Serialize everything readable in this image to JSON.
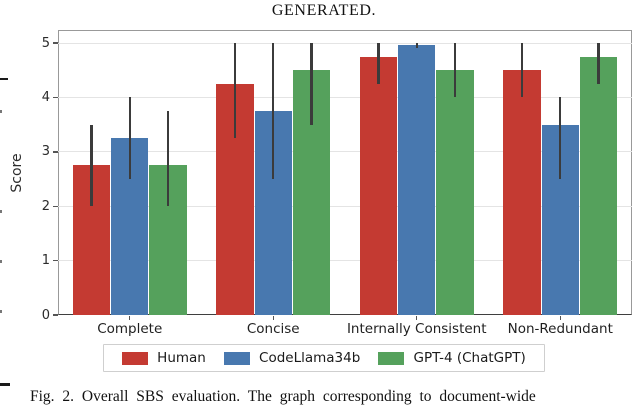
{
  "page": {
    "top_caption": "GENERATED.",
    "figure_caption": "Fig. 2.   Overall SBS evaluation. The graph corresponding to document-wide"
  },
  "chart_data": {
    "type": "bar",
    "title": "",
    "categories": [
      "Complete",
      "Concise",
      "Internally Consistent",
      "Non-Redundant"
    ],
    "series": [
      {
        "name": "Human",
        "color": "#c43a32",
        "values": [
          2.75,
          4.25,
          4.75,
          4.5
        ],
        "error_low": [
          2.0,
          3.25,
          4.25,
          4.0
        ],
        "error_high": [
          3.5,
          5.0,
          5.0,
          5.0
        ]
      },
      {
        "name": "CodeLlama34b",
        "color": "#4878af",
        "values": [
          3.25,
          3.75,
          4.97,
          3.5
        ],
        "error_low": [
          2.5,
          2.5,
          4.9,
          2.5
        ],
        "error_high": [
          4.0,
          5.0,
          5.0,
          4.0
        ]
      },
      {
        "name": "GPT-4 (ChatGPT)",
        "color": "#55a15c",
        "values": [
          2.75,
          4.5,
          4.5,
          4.75
        ],
        "error_low": [
          2.0,
          3.5,
          4.0,
          4.25
        ],
        "error_high": [
          3.75,
          5.0,
          5.0,
          5.0
        ]
      }
    ],
    "xlabel": "",
    "ylabel": "Score",
    "ylim": [
      0,
      5.24
    ],
    "yticks": [
      0,
      1,
      2,
      3,
      4,
      5
    ],
    "grid": "horizontal",
    "bar_group_width_fraction": 0.8,
    "error_bar_color": "#3b3b3b",
    "legend_position": "bottom"
  }
}
